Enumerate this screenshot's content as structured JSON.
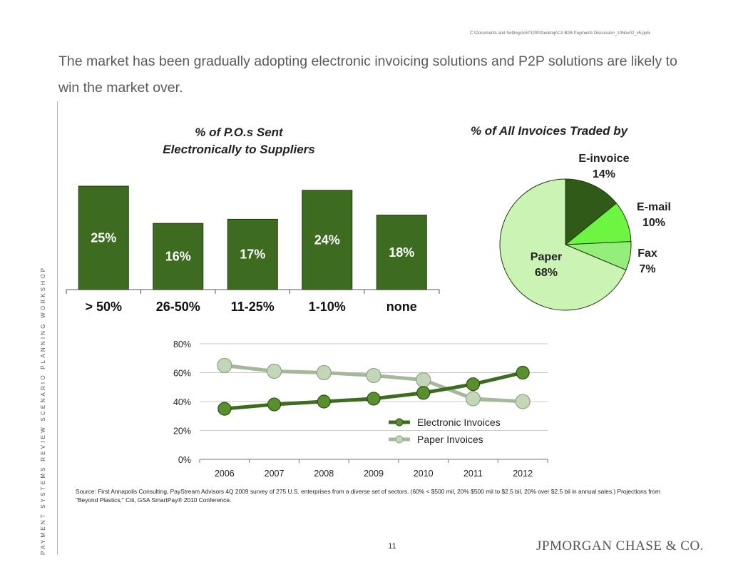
{
  "header": {
    "file_path": "C:\\Documents and Settings\\c673200\\Desktop\\CA B2B Payments Discussion_10Nov02_v5.pptx",
    "headline": "The market has been gradually adopting electronic invoicing solutions and P2P solutions are likely to win the market over."
  },
  "sidebar": {
    "vertical_text": "PAYMENT SYSTEMS REVIEW SCENARIO PLANNING WORKSHOP"
  },
  "chart_data": [
    {
      "type": "bar",
      "title_line1": "% of P.O.s Sent",
      "title_line2": "Electronically to Suppliers",
      "categories": [
        "> 50%",
        "26-50%",
        "11-25%",
        "1-10%",
        "none"
      ],
      "values": [
        25,
        16,
        17,
        24,
        18
      ],
      "labels": [
        "25%",
        "16%",
        "17%",
        "24%",
        "18%"
      ],
      "color": "#3d6b1f"
    },
    {
      "type": "pie",
      "title": "% of All Invoices Traded by",
      "slices": [
        {
          "name": "E-invoice",
          "label": "14%",
          "value": 14,
          "color": "#2f5a17"
        },
        {
          "name": "E-mail",
          "label": "10%",
          "value": 10,
          "color": "#6ef542"
        },
        {
          "name": "Fax",
          "label": "7%",
          "value": 7,
          "color": "#94ee7a"
        },
        {
          "name": "Paper",
          "label": "68%",
          "value": 68,
          "color": "#cbf3b4"
        }
      ]
    },
    {
      "type": "line",
      "x": [
        "2006",
        "2007",
        "2008",
        "2009",
        "2010",
        "2011",
        "2012"
      ],
      "ylim": [
        0,
        80
      ],
      "yticks": [
        "0%",
        "20%",
        "40%",
        "60%",
        "80%"
      ],
      "grid": true,
      "legend_position": "inside-right",
      "series": [
        {
          "name": "Electronic Invoices",
          "values": [
            35,
            38,
            40,
            42,
            46,
            52,
            60
          ],
          "color": "#3d6b1f",
          "marker": "#5a8f2e"
        },
        {
          "name": "Paper Invoices",
          "values": [
            65,
            61,
            60,
            58,
            55,
            42,
            40
          ],
          "color": "#a6b89a",
          "marker": "#c3d6b7"
        }
      ]
    }
  ],
  "source": "Source:  First Annapolis Consulting, PayStream Advisors 4Q 2009 survey of 275 U.S. enterprises from a diverse set of sectors.  (60% < $500 mil, 20% $500 mil to $2.5 bil, 20% over $2.5 bil in annual sales.)  Projections from \"Beyond Plastics,\" Citi, GSA SmartPay® 2010 Conference.",
  "footer": {
    "page_number": "11",
    "logo_jp": "JPM",
    "logo_organ": "ORGAN",
    "logo_c": " C",
    "logo_hase": "HASE",
    "logo_amp": " & C",
    "logo_o": "O",
    "logo_dot": "."
  }
}
